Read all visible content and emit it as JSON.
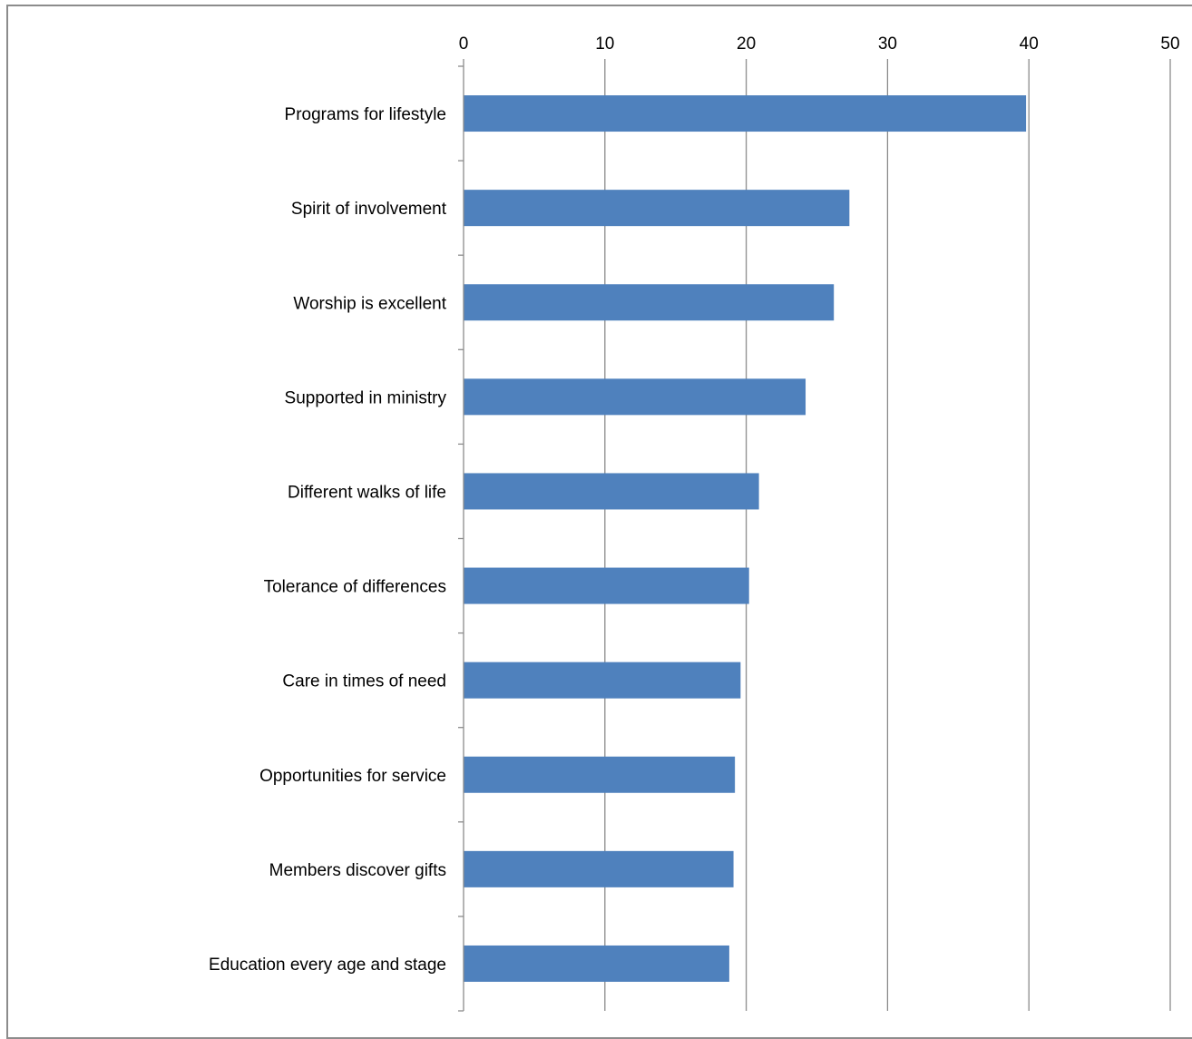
{
  "chart_data": {
    "type": "bar",
    "orientation": "horizontal",
    "title": "",
    "xlabel": "",
    "ylabel": "",
    "categories": [
      "Programs for lifestyle",
      "Spirit of involvement",
      "Worship is excellent",
      "Supported in ministry",
      "Different walks of life",
      "Tolerance of differences",
      "Care in times of need",
      "Opportunities for service",
      "Members discover gifts",
      "Education every age and stage"
    ],
    "values": [
      39.8,
      27.3,
      26.2,
      24.2,
      20.9,
      20.2,
      19.6,
      19.2,
      19.1,
      18.8
    ],
    "xlim": [
      0,
      50
    ],
    "x_ticks": [
      "0",
      "10",
      "20",
      "30",
      "40",
      "50"
    ],
    "x_axis_position": "top",
    "grid": true,
    "legend": "none",
    "colors": {
      "bar": "#4f81bd",
      "gridline": "#8c8c8c",
      "axis": "#8c8c8c"
    }
  }
}
